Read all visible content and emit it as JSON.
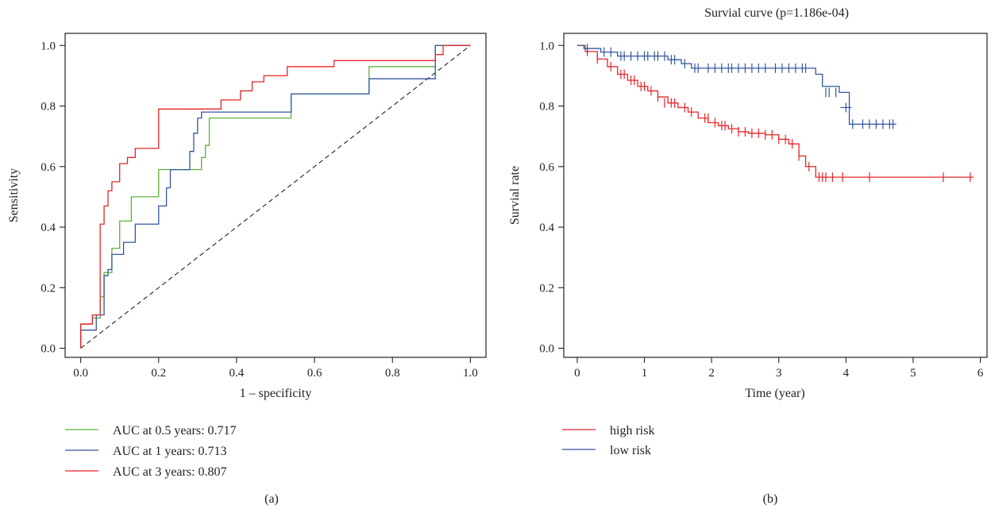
{
  "chart_data": [
    {
      "type": "line",
      "panel_label": "(a)",
      "title": "",
      "xlabel": "1 – specificity",
      "ylabel": "Sensitivity",
      "xlim": [
        -0.04,
        1.04
      ],
      "ylim": [
        -0.03,
        1.04
      ],
      "xticks": [
        0.0,
        0.2,
        0.4,
        0.6,
        0.8,
        1.0
      ],
      "xtick_labels": [
        "0.0",
        "0.2",
        "0.4",
        "0.6",
        "0.8",
        "1.0"
      ],
      "yticks": [
        0.0,
        0.2,
        0.4,
        0.6,
        0.8,
        1.0
      ],
      "ytick_labels": [
        "0.0",
        "0.2",
        "0.4",
        "0.6",
        "0.8",
        "1.0"
      ],
      "grid": false,
      "legend_position": "below-left",
      "series": [
        {
          "name": "AUC at 0.5 years: 0.717",
          "color": "#5cb33a",
          "x": [
            0.0,
            0.0,
            0.03,
            0.03,
            0.05,
            0.05,
            0.06,
            0.06,
            0.08,
            0.08,
            0.1,
            0.1,
            0.13,
            0.13,
            0.2,
            0.2,
            0.31,
            0.31,
            0.32,
            0.32,
            0.33,
            0.33,
            0.54,
            0.54,
            0.74,
            0.74,
            0.91,
            0.91,
            1.0
          ],
          "y": [
            0.0,
            0.08,
            0.08,
            0.1,
            0.1,
            0.17,
            0.17,
            0.25,
            0.25,
            0.33,
            0.33,
            0.42,
            0.42,
            0.5,
            0.5,
            0.59,
            0.59,
            0.63,
            0.63,
            0.67,
            0.67,
            0.76,
            0.76,
            0.84,
            0.84,
            0.93,
            0.93,
            1.0,
            1.0
          ]
        },
        {
          "name": "AUC at 1 years: 0.713",
          "color": "#3355a0",
          "x": [
            0.0,
            0.0,
            0.04,
            0.04,
            0.06,
            0.06,
            0.07,
            0.07,
            0.08,
            0.08,
            0.11,
            0.11,
            0.14,
            0.14,
            0.2,
            0.2,
            0.22,
            0.22,
            0.23,
            0.23,
            0.28,
            0.28,
            0.29,
            0.29,
            0.3,
            0.3,
            0.31,
            0.31,
            0.32,
            0.32,
            0.54,
            0.54,
            0.74,
            0.74,
            0.91,
            0.91,
            1.0
          ],
          "y": [
            0.0,
            0.06,
            0.06,
            0.11,
            0.11,
            0.24,
            0.24,
            0.26,
            0.26,
            0.31,
            0.31,
            0.35,
            0.35,
            0.41,
            0.41,
            0.47,
            0.47,
            0.53,
            0.53,
            0.59,
            0.59,
            0.65,
            0.65,
            0.71,
            0.71,
            0.76,
            0.76,
            0.78,
            0.78,
            0.78,
            0.78,
            0.84,
            0.84,
            0.89,
            0.89,
            1.0,
            1.0
          ]
        },
        {
          "name": "AUC at 3 years: 0.807",
          "color": "#e8252a",
          "x": [
            0.0,
            0.0,
            0.03,
            0.03,
            0.05,
            0.05,
            0.06,
            0.06,
            0.07,
            0.07,
            0.08,
            0.08,
            0.1,
            0.1,
            0.12,
            0.12,
            0.14,
            0.14,
            0.16,
            0.16,
            0.2,
            0.2,
            0.36,
            0.36,
            0.41,
            0.41,
            0.44,
            0.44,
            0.47,
            0.47,
            0.53,
            0.53,
            0.65,
            0.65,
            0.68,
            0.68,
            0.91,
            0.91,
            0.93,
            0.93,
            1.0
          ],
          "y": [
            0.0,
            0.08,
            0.08,
            0.11,
            0.11,
            0.41,
            0.41,
            0.47,
            0.47,
            0.52,
            0.52,
            0.55,
            0.55,
            0.61,
            0.61,
            0.63,
            0.63,
            0.66,
            0.66,
            0.66,
            0.66,
            0.79,
            0.79,
            0.82,
            0.82,
            0.85,
            0.85,
            0.88,
            0.88,
            0.9,
            0.9,
            0.93,
            0.93,
            0.95,
            0.95,
            0.95,
            0.95,
            0.97,
            0.97,
            1.0,
            1.0
          ]
        }
      ],
      "reference_line": {
        "x": [
          0.0,
          1.0
        ],
        "y": [
          0.0,
          1.0
        ],
        "style": "dashed",
        "color": "#222222"
      }
    },
    {
      "type": "line",
      "panel_label": "(b)",
      "title": "Survial curve (p=1.186e-04)",
      "xlabel": "Time (year)",
      "ylabel": "Survial rate",
      "xlim": [
        -0.2,
        6.1
      ],
      "ylim": [
        -0.03,
        1.04
      ],
      "xticks": [
        0,
        1,
        2,
        3,
        4,
        5,
        6
      ],
      "xtick_labels": [
        "0",
        "1",
        "2",
        "3",
        "4",
        "5",
        "6"
      ],
      "yticks": [
        0.0,
        0.2,
        0.4,
        0.6,
        0.8,
        1.0
      ],
      "ytick_labels": [
        "0.0",
        "0.2",
        "0.4",
        "0.6",
        "0.8",
        "1.0"
      ],
      "grid": false,
      "legend_position": "below-left",
      "series": [
        {
          "name": "high risk",
          "color": "#e8252a",
          "x": [
            0.0,
            0.12,
            0.3,
            0.45,
            0.6,
            0.75,
            0.9,
            1.05,
            1.2,
            1.35,
            1.5,
            1.65,
            1.8,
            1.95,
            2.1,
            2.25,
            2.4,
            2.55,
            2.8,
            3.0,
            3.15,
            3.3,
            3.4,
            3.55,
            5.9
          ],
          "y": [
            1.0,
            0.98,
            0.955,
            0.93,
            0.905,
            0.885,
            0.865,
            0.85,
            0.83,
            0.81,
            0.795,
            0.78,
            0.76,
            0.745,
            0.735,
            0.725,
            0.715,
            0.71,
            0.705,
            0.69,
            0.675,
            0.635,
            0.6,
            0.565,
            0.565
          ],
          "censor_x": [
            0.15,
            0.3,
            0.5,
            0.65,
            0.7,
            0.8,
            0.85,
            0.95,
            1.0,
            1.1,
            1.2,
            1.3,
            1.4,
            1.45,
            1.6,
            1.7,
            1.9,
            1.95,
            2.05,
            2.15,
            2.2,
            2.3,
            2.4,
            2.5,
            2.6,
            2.7,
            2.8,
            2.9,
            3.0,
            3.1,
            3.2,
            3.3,
            3.45,
            3.6,
            3.65,
            3.7,
            3.8,
            3.95,
            4.35,
            5.45,
            5.85
          ],
          "censor_y": [
            0.98,
            0.955,
            0.93,
            0.905,
            0.905,
            0.885,
            0.885,
            0.865,
            0.865,
            0.85,
            0.83,
            0.81,
            0.81,
            0.81,
            0.795,
            0.78,
            0.76,
            0.76,
            0.745,
            0.735,
            0.735,
            0.725,
            0.715,
            0.715,
            0.71,
            0.71,
            0.705,
            0.705,
            0.69,
            0.69,
            0.675,
            0.635,
            0.6,
            0.565,
            0.565,
            0.565,
            0.565,
            0.565,
            0.565,
            0.565,
            0.565
          ]
        },
        {
          "name": "low risk",
          "color": "#3355a0",
          "x": [
            0.0,
            0.1,
            0.35,
            0.6,
            1.35,
            1.55,
            1.7,
            3.45,
            3.55,
            3.65,
            3.9,
            4.05,
            4.75
          ],
          "y": [
            1.0,
            0.99,
            0.978,
            0.965,
            0.953,
            0.94,
            0.925,
            0.925,
            0.905,
            0.865,
            0.845,
            0.74,
            0.74
          ],
          "censor_x": [
            0.15,
            0.4,
            0.5,
            0.65,
            0.7,
            0.8,
            0.9,
            1.0,
            1.05,
            1.15,
            1.2,
            1.3,
            1.4,
            1.45,
            1.6,
            1.75,
            1.8,
            1.95,
            2.05,
            2.15,
            2.25,
            2.3,
            2.4,
            2.5,
            2.6,
            2.7,
            2.8,
            2.95,
            3.05,
            3.15,
            3.25,
            3.35,
            3.4,
            3.7,
            3.75,
            3.85,
            4.1,
            4.25,
            4.35,
            4.45,
            4.55,
            4.65,
            4.7
          ],
          "censor_y": [
            0.99,
            0.978,
            0.978,
            0.965,
            0.965,
            0.965,
            0.965,
            0.965,
            0.965,
            0.965,
            0.965,
            0.965,
            0.953,
            0.953,
            0.94,
            0.925,
            0.925,
            0.925,
            0.925,
            0.925,
            0.925,
            0.925,
            0.925,
            0.925,
            0.925,
            0.925,
            0.925,
            0.925,
            0.925,
            0.925,
            0.925,
            0.925,
            0.925,
            0.845,
            0.845,
            0.845,
            0.74,
            0.74,
            0.74,
            0.74,
            0.74,
            0.74,
            0.74
          ]
        }
      ],
      "extra_censor_marks": {
        "x": [
          4.0
        ],
        "y": [
          0.795
        ],
        "color": "#3355a0"
      }
    }
  ]
}
